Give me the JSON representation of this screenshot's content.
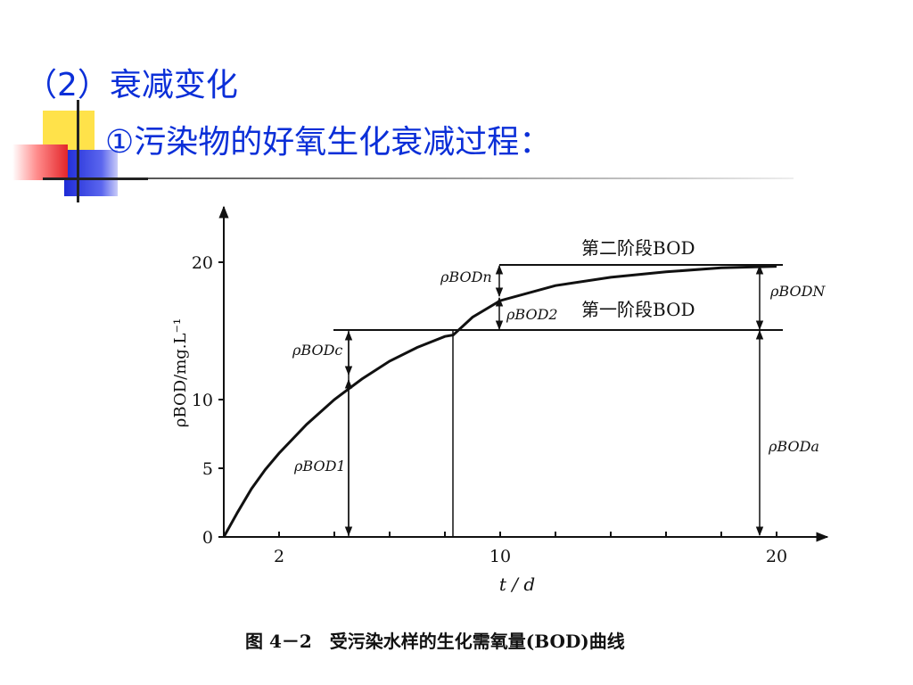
{
  "slide": {
    "title": "（2）衰减变化",
    "subtitle": "①污染物的好氧生化衰减过程：",
    "accent_color": "#0b2fd8"
  },
  "chart_data": {
    "type": "line",
    "title": "",
    "xlabel": "t / d",
    "ylabel": "ρBOD/mg.L⁻¹",
    "x_ticks": [
      "2",
      "10",
      "20"
    ],
    "y_ticks": [
      "0",
      "5",
      "10",
      "20"
    ],
    "xlim": [
      0,
      22
    ],
    "ylim": [
      0,
      23
    ],
    "series": [
      {
        "x": [
          0,
          0.5,
          1,
          1.5,
          2,
          3,
          4,
          5,
          6,
          7,
          8,
          8.3,
          9,
          10,
          12,
          14,
          16,
          18,
          20
        ],
        "y": [
          0,
          1.8,
          3.5,
          4.9,
          6.1,
          8.2,
          10.0,
          11.5,
          12.8,
          13.8,
          14.6,
          14.7,
          16.0,
          17.2,
          18.3,
          18.9,
          19.3,
          19.6,
          19.7
        ]
      }
    ],
    "annotations": {
      "stage2": "第二阶段BOD",
      "stage1": "第一阶段BOD",
      "rho_c": "ρBODc",
      "rho_1": "ρBOD1",
      "rho_n": "ρBODn",
      "rho_2": "ρBOD2",
      "rho_N": "ρBODN",
      "rho_a": "ρBODa"
    },
    "caption": "图 4－2　受污染水样的生化需氧量(BOD)曲线"
  }
}
